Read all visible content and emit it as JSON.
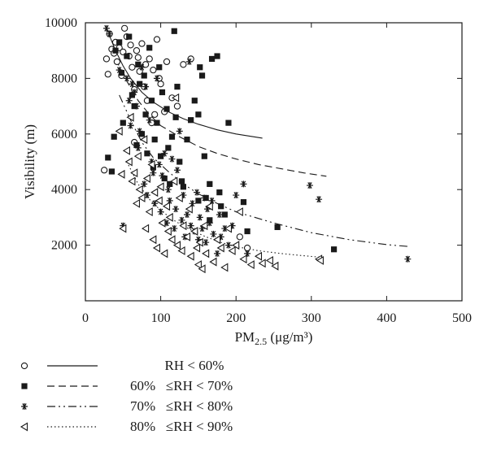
{
  "chart_data": {
    "type": "scatter",
    "title": "",
    "xlabel_main": "PM",
    "xlabel_sub": "2.5",
    "xlabel_unit": " (μg/m³)",
    "ylabel": "Visibility (m)",
    "xlim": [
      0,
      500
    ],
    "ylim": [
      0,
      10000
    ],
    "xticks": [
      0,
      100,
      200,
      300,
      400,
      500
    ],
    "yticks": [
      2000,
      4000,
      6000,
      8000,
      10000
    ],
    "grid": false,
    "legend_placement": "bottom",
    "series": [
      {
        "name": "RH < 60%",
        "marker": "circle",
        "line_style": "solid",
        "fit": {
          "x": [
            28,
            40,
            50,
            60,
            75,
            90,
            110,
            130,
            150,
            175,
            200,
            235
          ],
          "y": [
            9800,
            9000,
            8450,
            8000,
            7500,
            7150,
            6800,
            6550,
            6350,
            6150,
            6000,
            5850
          ]
        },
        "points": [
          {
            "x": 25,
            "y": 4700
          },
          {
            "x": 28,
            "y": 8700
          },
          {
            "x": 30,
            "y": 8150
          },
          {
            "x": 32,
            "y": 9600
          },
          {
            "x": 35,
            "y": 9050
          },
          {
            "x": 38,
            "y": 8900
          },
          {
            "x": 40,
            "y": 9300
          },
          {
            "x": 42,
            "y": 8600
          },
          {
            "x": 45,
            "y": 9100
          },
          {
            "x": 48,
            "y": 8100
          },
          {
            "x": 50,
            "y": 8950
          },
          {
            "x": 52,
            "y": 9800
          },
          {
            "x": 55,
            "y": 9500
          },
          {
            "x": 58,
            "y": 8800
          },
          {
            "x": 60,
            "y": 9200
          },
          {
            "x": 62,
            "y": 8400
          },
          {
            "x": 65,
            "y": 7600
          },
          {
            "x": 68,
            "y": 9000
          },
          {
            "x": 70,
            "y": 8750
          },
          {
            "x": 72,
            "y": 8250
          },
          {
            "x": 75,
            "y": 9250
          },
          {
            "x": 78,
            "y": 7700
          },
          {
            "x": 80,
            "y": 8500
          },
          {
            "x": 82,
            "y": 7200
          },
          {
            "x": 85,
            "y": 8700
          },
          {
            "x": 88,
            "y": 6400
          },
          {
            "x": 90,
            "y": 8300
          },
          {
            "x": 92,
            "y": 6700
          },
          {
            "x": 95,
            "y": 9400
          },
          {
            "x": 98,
            "y": 8000
          },
          {
            "x": 100,
            "y": 7800
          },
          {
            "x": 105,
            "y": 6800
          },
          {
            "x": 108,
            "y": 8600
          },
          {
            "x": 115,
            "y": 7300
          },
          {
            "x": 122,
            "y": 7000
          },
          {
            "x": 130,
            "y": 8500
          },
          {
            "x": 140,
            "y": 8700
          },
          {
            "x": 65,
            "y": 5700
          },
          {
            "x": 205,
            "y": 2300
          },
          {
            "x": 215,
            "y": 1900
          }
        ]
      },
      {
        "name": "60% ≤RH < 70%",
        "marker": "square",
        "line_style": "dashed",
        "fit": {
          "x": [
            40,
            55,
            70,
            85,
            100,
            125,
            150,
            175,
            200,
            230,
            260,
            290,
            320
          ],
          "y": [
            8700,
            7900,
            7200,
            6700,
            6300,
            5900,
            5550,
            5300,
            5100,
            4900,
            4750,
            4600,
            4480
          ]
        },
        "points": [
          {
            "x": 30,
            "y": 5150
          },
          {
            "x": 35,
            "y": 4650
          },
          {
            "x": 38,
            "y": 5900
          },
          {
            "x": 40,
            "y": 9000
          },
          {
            "x": 45,
            "y": 9300
          },
          {
            "x": 48,
            "y": 8200
          },
          {
            "x": 50,
            "y": 6400
          },
          {
            "x": 55,
            "y": 8800
          },
          {
            "x": 58,
            "y": 9500
          },
          {
            "x": 62,
            "y": 7400
          },
          {
            "x": 65,
            "y": 7000
          },
          {
            "x": 68,
            "y": 5600
          },
          {
            "x": 70,
            "y": 8500
          },
          {
            "x": 72,
            "y": 7800
          },
          {
            "x": 75,
            "y": 6000
          },
          {
            "x": 78,
            "y": 8100
          },
          {
            "x": 80,
            "y": 6700
          },
          {
            "x": 82,
            "y": 5300
          },
          {
            "x": 85,
            "y": 9100
          },
          {
            "x": 88,
            "y": 7200
          },
          {
            "x": 90,
            "y": 4800
          },
          {
            "x": 92,
            "y": 5800
          },
          {
            "x": 95,
            "y": 6400
          },
          {
            "x": 98,
            "y": 8400
          },
          {
            "x": 100,
            "y": 5200
          },
          {
            "x": 102,
            "y": 7500
          },
          {
            "x": 105,
            "y": 4400
          },
          {
            "x": 108,
            "y": 6900
          },
          {
            "x": 110,
            "y": 5500
          },
          {
            "x": 112,
            "y": 4200
          },
          {
            "x": 115,
            "y": 5900
          },
          {
            "x": 118,
            "y": 9700
          },
          {
            "x": 120,
            "y": 6600
          },
          {
            "x": 122,
            "y": 7700
          },
          {
            "x": 125,
            "y": 5000
          },
          {
            "x": 128,
            "y": 4300
          },
          {
            "x": 130,
            "y": 4100
          },
          {
            "x": 135,
            "y": 5800
          },
          {
            "x": 140,
            "y": 6500
          },
          {
            "x": 145,
            "y": 7200
          },
          {
            "x": 150,
            "y": 6700
          },
          {
            "x": 152,
            "y": 8400
          },
          {
            "x": 155,
            "y": 8100
          },
          {
            "x": 158,
            "y": 5200
          },
          {
            "x": 160,
            "y": 3700
          },
          {
            "x": 165,
            "y": 4200
          },
          {
            "x": 168,
            "y": 8700
          },
          {
            "x": 175,
            "y": 8800
          },
          {
            "x": 178,
            "y": 3900
          },
          {
            "x": 180,
            "y": 3400
          },
          {
            "x": 185,
            "y": 3100
          },
          {
            "x": 190,
            "y": 6400
          },
          {
            "x": 210,
            "y": 3550
          },
          {
            "x": 215,
            "y": 2500
          },
          {
            "x": 255,
            "y": 2650
          },
          {
            "x": 330,
            "y": 1850
          },
          {
            "x": 165,
            "y": 2900
          },
          {
            "x": 150,
            "y": 3600
          }
        ]
      },
      {
        "name": "70% ≤RH < 80%",
        "marker": "asterisk",
        "line_style": "dashdotdot",
        "fit": {
          "x": [
            45,
            60,
            75,
            90,
            110,
            130,
            150,
            175,
            200,
            250,
            300,
            350,
            400,
            430
          ],
          "y": [
            7400,
            6500,
            5700,
            5150,
            4650,
            4200,
            3850,
            3500,
            3200,
            2800,
            2450,
            2200,
            2020,
            1950
          ]
        },
        "points": [
          {
            "x": 28,
            "y": 9800
          },
          {
            "x": 32,
            "y": 9600
          },
          {
            "x": 45,
            "y": 8300
          },
          {
            "x": 50,
            "y": 2700
          },
          {
            "x": 55,
            "y": 8000
          },
          {
            "x": 58,
            "y": 7200
          },
          {
            "x": 60,
            "y": 6300
          },
          {
            "x": 62,
            "y": 7800
          },
          {
            "x": 65,
            "y": 7500
          },
          {
            "x": 68,
            "y": 7000
          },
          {
            "x": 70,
            "y": 5500
          },
          {
            "x": 72,
            "y": 6100
          },
          {
            "x": 75,
            "y": 8400
          },
          {
            "x": 78,
            "y": 4200
          },
          {
            "x": 80,
            "y": 7700
          },
          {
            "x": 82,
            "y": 3800
          },
          {
            "x": 85,
            "y": 6500
          },
          {
            "x": 88,
            "y": 5000
          },
          {
            "x": 90,
            "y": 4600
          },
          {
            "x": 92,
            "y": 3500
          },
          {
            "x": 95,
            "y": 8000
          },
          {
            "x": 98,
            "y": 4900
          },
          {
            "x": 100,
            "y": 3200
          },
          {
            "x": 102,
            "y": 4500
          },
          {
            "x": 105,
            "y": 5300
          },
          {
            "x": 108,
            "y": 2800
          },
          {
            "x": 110,
            "y": 4000
          },
          {
            "x": 112,
            "y": 3600
          },
          {
            "x": 115,
            "y": 5100
          },
          {
            "x": 118,
            "y": 2600
          },
          {
            "x": 120,
            "y": 3300
          },
          {
            "x": 122,
            "y": 4700
          },
          {
            "x": 125,
            "y": 6100
          },
          {
            "x": 128,
            "y": 2900
          },
          {
            "x": 130,
            "y": 3800
          },
          {
            "x": 132,
            "y": 2300
          },
          {
            "x": 135,
            "y": 3100
          },
          {
            "x": 138,
            "y": 8600
          },
          {
            "x": 140,
            "y": 2700
          },
          {
            "x": 142,
            "y": 3500
          },
          {
            "x": 145,
            "y": 2500
          },
          {
            "x": 148,
            "y": 3900
          },
          {
            "x": 150,
            "y": 2200
          },
          {
            "x": 152,
            "y": 3000
          },
          {
            "x": 155,
            "y": 2600
          },
          {
            "x": 158,
            "y": 3700
          },
          {
            "x": 160,
            "y": 2100
          },
          {
            "x": 162,
            "y": 3300
          },
          {
            "x": 165,
            "y": 2800
          },
          {
            "x": 168,
            "y": 3600
          },
          {
            "x": 170,
            "y": 2400
          },
          {
            "x": 175,
            "y": 1700
          },
          {
            "x": 178,
            "y": 3100
          },
          {
            "x": 180,
            "y": 2300
          },
          {
            "x": 185,
            "y": 2600
          },
          {
            "x": 190,
            "y": 2000
          },
          {
            "x": 195,
            "y": 2700
          },
          {
            "x": 200,
            "y": 3800
          },
          {
            "x": 210,
            "y": 4200
          },
          {
            "x": 215,
            "y": 1700
          },
          {
            "x": 298,
            "y": 4150
          },
          {
            "x": 310,
            "y": 3650
          },
          {
            "x": 428,
            "y": 1500
          }
        ]
      },
      {
        "name": "80% ≤RH < 90%",
        "marker": "triangle-left",
        "line_style": "dotted",
        "fit": {
          "x": [
            55,
            70,
            85,
            100,
            120,
            140,
            160,
            180,
            200,
            230,
            260,
            290,
            315
          ],
          "y": [
            5000,
            4200,
            3650,
            3250,
            2850,
            2550,
            2300,
            2100,
            1950,
            1800,
            1700,
            1620,
            1560
          ]
        },
        "points": [
          {
            "x": 45,
            "y": 6100
          },
          {
            "x": 48,
            "y": 4550
          },
          {
            "x": 50,
            "y": 2600
          },
          {
            "x": 55,
            "y": 5400
          },
          {
            "x": 58,
            "y": 5000
          },
          {
            "x": 60,
            "y": 6600
          },
          {
            "x": 62,
            "y": 4300
          },
          {
            "x": 65,
            "y": 4600
          },
          {
            "x": 68,
            "y": 3500
          },
          {
            "x": 70,
            "y": 5200
          },
          {
            "x": 72,
            "y": 4000
          },
          {
            "x": 75,
            "y": 3700
          },
          {
            "x": 78,
            "y": 5800
          },
          {
            "x": 80,
            "y": 2600
          },
          {
            "x": 82,
            "y": 4400
          },
          {
            "x": 85,
            "y": 3200
          },
          {
            "x": 88,
            "y": 4900
          },
          {
            "x": 90,
            "y": 2200
          },
          {
            "x": 92,
            "y": 3900
          },
          {
            "x": 95,
            "y": 1900
          },
          {
            "x": 98,
            "y": 3600
          },
          {
            "x": 100,
            "y": 4100
          },
          {
            "x": 102,
            "y": 2800
          },
          {
            "x": 105,
            "y": 1700
          },
          {
            "x": 108,
            "y": 3400
          },
          {
            "x": 110,
            "y": 2500
          },
          {
            "x": 112,
            "y": 3000
          },
          {
            "x": 115,
            "y": 2200
          },
          {
            "x": 118,
            "y": 4300
          },
          {
            "x": 120,
            "y": 7300
          },
          {
            "x": 122,
            "y": 2000
          },
          {
            "x": 125,
            "y": 3700
          },
          {
            "x": 128,
            "y": 1800
          },
          {
            "x": 130,
            "y": 2700
          },
          {
            "x": 135,
            "y": 2300
          },
          {
            "x": 138,
            "y": 3300
          },
          {
            "x": 140,
            "y": 1600
          },
          {
            "x": 145,
            "y": 2500
          },
          {
            "x": 148,
            "y": 1900
          },
          {
            "x": 150,
            "y": 1300
          },
          {
            "x": 152,
            "y": 2100
          },
          {
            "x": 155,
            "y": 1150
          },
          {
            "x": 158,
            "y": 2700
          },
          {
            "x": 160,
            "y": 1700
          },
          {
            "x": 165,
            "y": 3400
          },
          {
            "x": 170,
            "y": 1400
          },
          {
            "x": 175,
            "y": 2200
          },
          {
            "x": 180,
            "y": 1900
          },
          {
            "x": 185,
            "y": 1200
          },
          {
            "x": 190,
            "y": 2600
          },
          {
            "x": 195,
            "y": 1800
          },
          {
            "x": 200,
            "y": 2000
          },
          {
            "x": 205,
            "y": 3200
          },
          {
            "x": 210,
            "y": 1500
          },
          {
            "x": 220,
            "y": 1300
          },
          {
            "x": 230,
            "y": 1600
          },
          {
            "x": 235,
            "y": 1350
          },
          {
            "x": 245,
            "y": 1450
          },
          {
            "x": 252,
            "y": 1250
          },
          {
            "x": 310,
            "y": 1500
          },
          {
            "x": 312,
            "y": 1450
          }
        ]
      }
    ]
  },
  "legend": {
    "rows": [
      {
        "label": "          RH < 60%"
      },
      {
        "label": "60%   ≤RH < 70%"
      },
      {
        "label": "70%   ≤RH < 80%"
      },
      {
        "label": "80%   ≤RH < 90%"
      }
    ]
  }
}
